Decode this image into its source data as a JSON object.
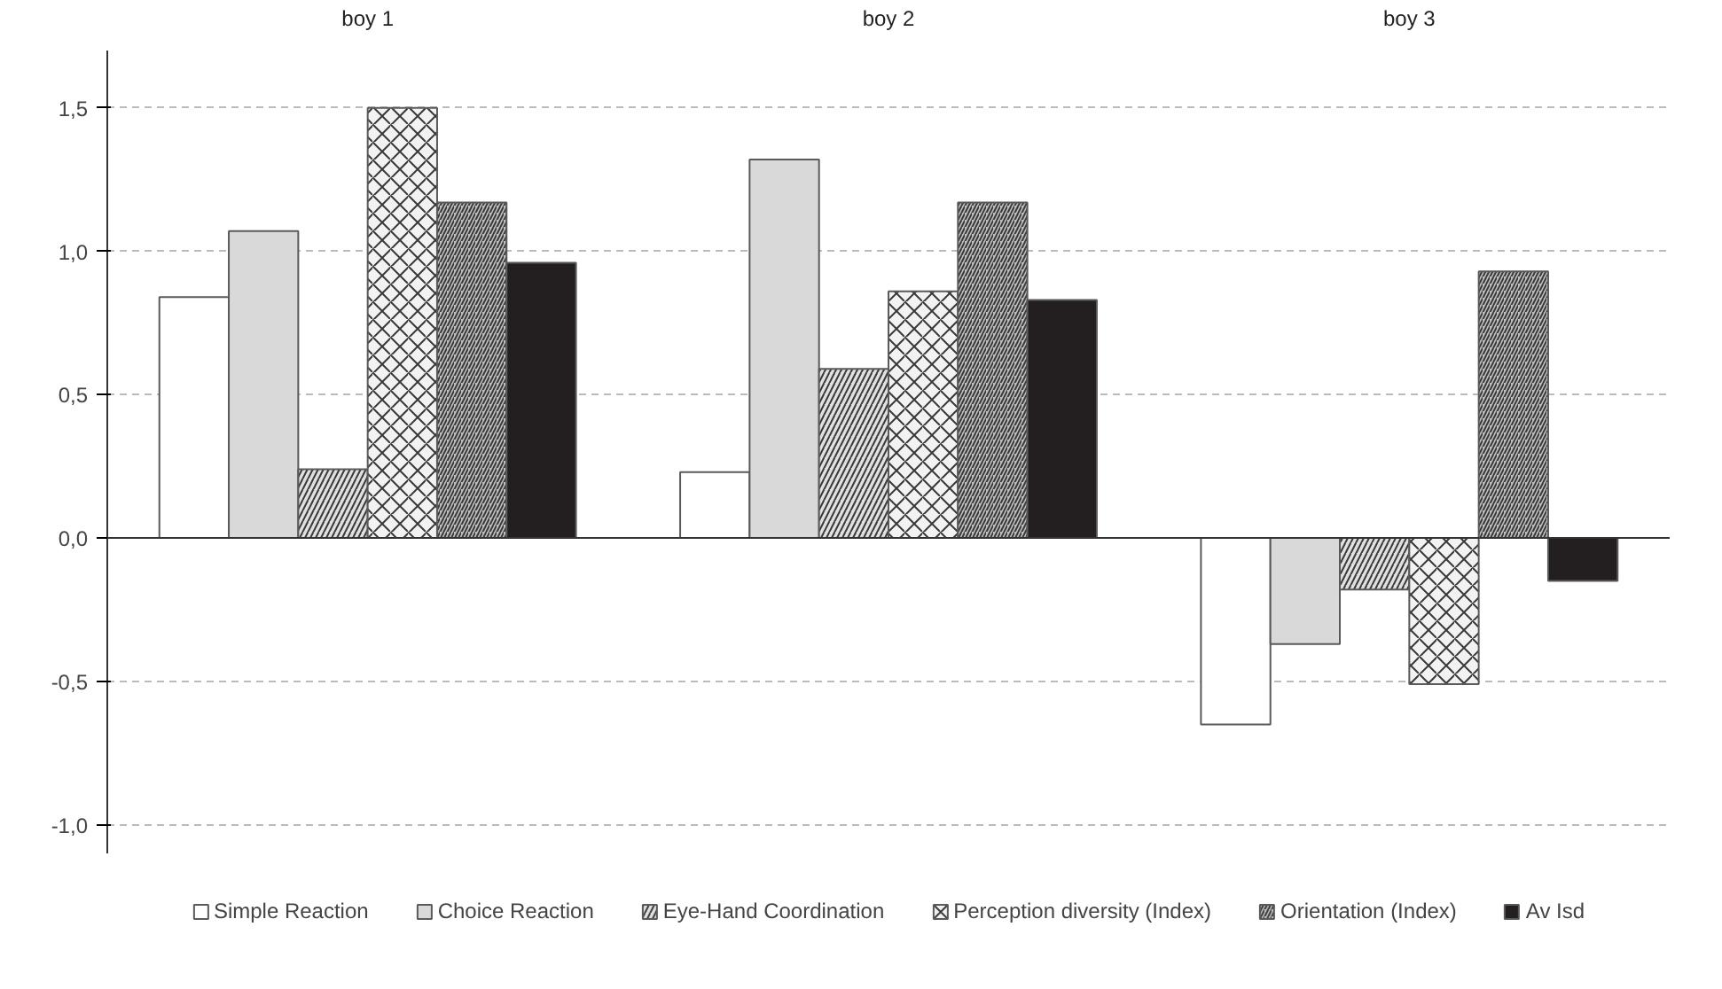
{
  "chart_data": {
    "type": "bar",
    "categories": [
      "boy 1",
      "boy 2",
      "boy 3"
    ],
    "series": [
      {
        "name": "Simple Reaction",
        "color": "#ffffff",
        "values": [
          0.84,
          0.23,
          -0.65
        ]
      },
      {
        "name": "Choice Reaction",
        "color": "#d9d9d9",
        "values": [
          1.07,
          1.32,
          -0.37
        ]
      },
      {
        "name": "Eye-Hand Coordination",
        "color": "#e0e0e0",
        "values": [
          0.24,
          0.59,
          -0.18
        ]
      },
      {
        "name": "Perception diversity (Index)",
        "color": "#f2f2f2",
        "values": [
          1.5,
          0.86,
          -0.51
        ]
      },
      {
        "name": "Orientation (Index)",
        "color": "#bfbfbf",
        "values": [
          1.17,
          1.17,
          0.93
        ]
      },
      {
        "name": "Av Isd",
        "color": "#231f20",
        "values": [
          0.96,
          0.83,
          -0.15
        ]
      }
    ],
    "ylim": [
      -1.1,
      1.7
    ],
    "yticks": [
      {
        "value": -1.0,
        "label": "-1,0"
      },
      {
        "value": -0.5,
        "label": "-0,5"
      },
      {
        "value": 0.0,
        "label": "0,0"
      },
      {
        "value": 0.5,
        "label": "0,5"
      },
      {
        "value": 1.0,
        "label": "1,0"
      },
      {
        "value": 1.5,
        "label": "1,5"
      }
    ],
    "grid": "y",
    "legend": "bottom"
  }
}
